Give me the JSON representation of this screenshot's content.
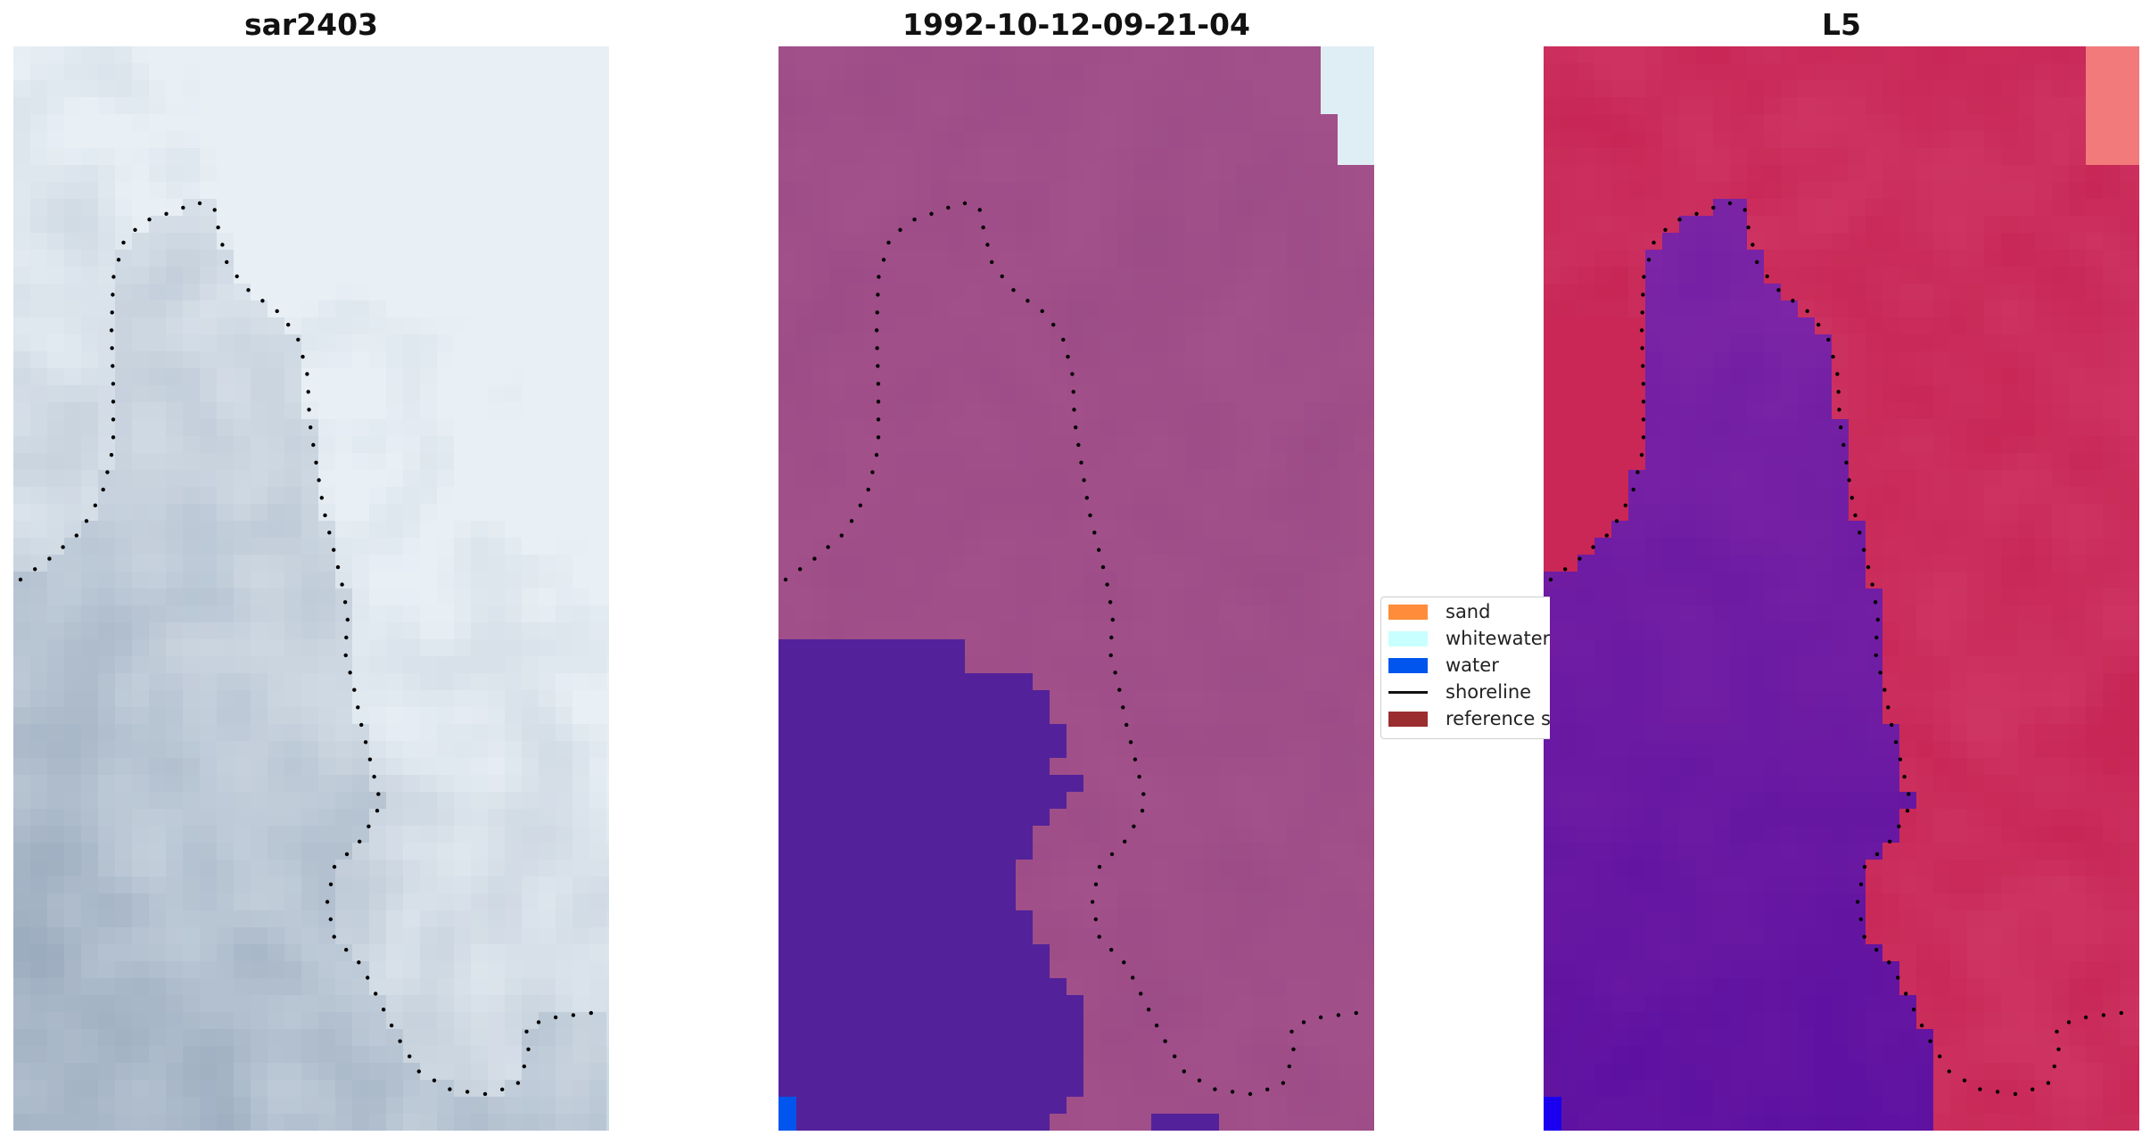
{
  "panels": [
    {
      "title": "sar2403",
      "colormap": "rgb"
    },
    {
      "title": "1992-10-12-09-21-04",
      "colormap": "classified"
    },
    {
      "title": "L5",
      "colormap": "index"
    }
  ],
  "legend": {
    "items": [
      {
        "label": "sand",
        "color": "#ff8c3a"
      },
      {
        "label": "whitewater",
        "color": "#c8ffff"
      },
      {
        "label": "water",
        "color": "#0055ee"
      },
      {
        "label": "shoreline",
        "color": "#000000"
      },
      {
        "label": "reference shoreline",
        "color": "#9b2d30"
      }
    ]
  },
  "colors": {
    "rgb_light": "#e8eff5",
    "rgb_dark": "#8d9fb4",
    "class_land": "#a8558e",
    "class_land_dark": "#9a4a85",
    "class_water": "#53229a",
    "class_whitewater": "#dfeef4",
    "class_blue": "#0055ee",
    "index_red": "#c41e4e",
    "index_pink": "#f27a7a",
    "index_purple": "#8a2ea8",
    "index_deep": "#5a0fa0",
    "shoreline_dots": "#000000"
  }
}
